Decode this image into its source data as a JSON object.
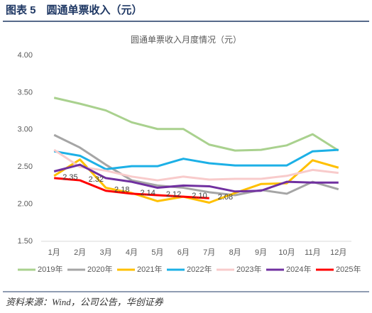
{
  "header": {
    "title": "图表 5　圆通单票收入（元）"
  },
  "footer": {
    "source": "资料来源：Wind，公司公告，华创证券"
  },
  "chart_data": {
    "type": "line",
    "title": "圆通单票收入月度情况（元）",
    "categories": [
      "1月",
      "2月",
      "3月",
      "4月",
      "5月",
      "6月",
      "7月",
      "8月",
      "9月",
      "10月",
      "11月",
      "12月"
    ],
    "ylim": [
      1.5,
      4.0
    ],
    "yticks": [
      {
        "value": 1.5,
        "label": "1.50"
      },
      {
        "value": 2.0,
        "label": "2.00"
      },
      {
        "value": 2.5,
        "label": "2.50"
      },
      {
        "value": 3.0,
        "label": "3.00"
      },
      {
        "value": 3.5,
        "label": "3.50"
      },
      {
        "value": 4.0,
        "label": "4.00"
      }
    ],
    "grid": false,
    "legend": "bottom",
    "series": [
      {
        "name": "2019年",
        "color": "#a9d18e",
        "values": [
          3.43,
          3.35,
          3.26,
          3.1,
          3.01,
          3.01,
          2.8,
          2.72,
          2.73,
          2.79,
          2.94,
          2.72
        ]
      },
      {
        "name": "2020年",
        "color": "#a5a5a5",
        "values": [
          2.93,
          2.76,
          2.53,
          2.32,
          2.25,
          2.22,
          2.16,
          2.12,
          2.19,
          2.14,
          2.3,
          2.2
        ]
      },
      {
        "name": "2021年",
        "color": "#ffc000",
        "values": [
          2.38,
          2.6,
          2.22,
          2.15,
          2.04,
          2.1,
          2.02,
          2.15,
          2.27,
          2.28,
          2.59,
          2.49
        ]
      },
      {
        "name": "2022年",
        "color": "#1cb0e6",
        "values": [
          2.71,
          2.65,
          2.47,
          2.51,
          2.51,
          2.61,
          2.55,
          2.52,
          2.52,
          2.52,
          2.71,
          2.73
        ]
      },
      {
        "name": "2023年",
        "color": "#f8cbcb",
        "values": [
          2.73,
          2.5,
          2.45,
          2.37,
          2.32,
          2.37,
          2.33,
          2.34,
          2.34,
          2.38,
          2.46,
          2.42
        ]
      },
      {
        "name": "2024年",
        "color": "#7030a0",
        "values": [
          2.44,
          2.53,
          2.35,
          2.3,
          2.22,
          2.25,
          2.24,
          2.17,
          2.18,
          2.3,
          2.29,
          2.29
        ]
      },
      {
        "name": "2025年",
        "color": "#ff0000",
        "values": [
          2.35,
          2.32,
          2.18,
          2.14,
          2.12,
          2.1,
          2.08,
          null,
          null,
          null,
          null,
          null
        ],
        "value_labels": [
          "2.35",
          "2.32",
          "2.18",
          "2.14",
          "2.12",
          "2.10",
          "2.08",
          null,
          null,
          null,
          null,
          null
        ]
      }
    ]
  }
}
